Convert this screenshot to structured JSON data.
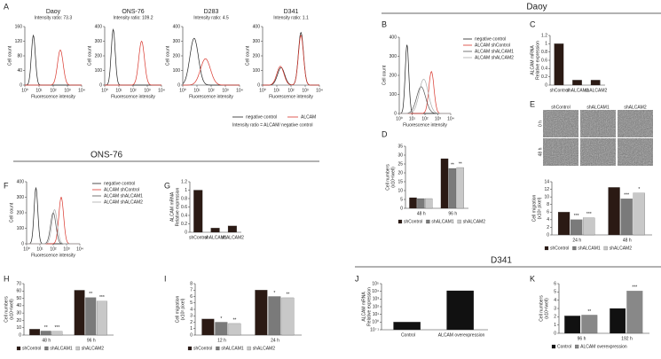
{
  "headers": [
    "Daoy",
    "ONS-76",
    "D341"
  ],
  "panel_labels": [
    "A",
    "B",
    "C",
    "D",
    "E",
    "F",
    "G",
    "H",
    "I",
    "J",
    "K"
  ],
  "shared_legend": {
    "series": [
      {
        "name": "negative control",
        "color": "#222222"
      },
      {
        "name": "ALCAM",
        "color": "#d9362c"
      }
    ],
    "note": "Intensity ratio = ALCAM/ negative control"
  },
  "images": {
    "columns": [
      "shControl",
      "shALCAM1",
      "shALCAM2"
    ],
    "rows": [
      "0 h",
      "48 h"
    ]
  },
  "chart_data": [
    {
      "type": "flow",
      "title": "Daoy",
      "subtitle": "Intensity ratio: 73.3",
      "xlabel": "Fluorescence intensity",
      "ylabel": "Cell count",
      "log_x": true,
      "xlim": [
        1,
        10000
      ],
      "xticks": [
        {
          "value": 1,
          "label": "10⁰"
        },
        {
          "value": 10,
          "label": "10¹"
        },
        {
          "value": 100,
          "label": "10²"
        },
        {
          "value": 1000,
          "label": "10³"
        },
        {
          "value": 10000,
          "label": "10⁴"
        }
      ],
      "ylim": [
        0,
        160
      ],
      "yticks": [
        0,
        40,
        80,
        120,
        160
      ]
    },
    {
      "type": "flow",
      "title": "ONS-76",
      "subtitle": "Intensity ratio: 109.2",
      "xlabel": "Fluorescence intensity",
      "ylabel": "Cell count",
      "log_x": true,
      "xlim": [
        1,
        10000
      ],
      "xticks": [
        {
          "value": 1,
          "label": "10⁰"
        },
        {
          "value": 10,
          "label": "10¹"
        },
        {
          "value": 100,
          "label": "10²"
        },
        {
          "value": 1000,
          "label": "10³"
        },
        {
          "value": 10000,
          "label": "10⁴"
        }
      ],
      "ylim": [
        0,
        400
      ],
      "yticks": [
        0,
        100,
        200,
        300,
        400
      ]
    },
    {
      "type": "flow",
      "title": "D283",
      "subtitle": "Intensity ratio: 4.5",
      "xlabel": "Fluorescence intensity",
      "ylabel": "Cell count",
      "log_x": true,
      "xlim": [
        1,
        10000
      ],
      "xticks": [
        {
          "value": 1,
          "label": "10⁰"
        },
        {
          "value": 10,
          "label": "10¹"
        },
        {
          "value": 100,
          "label": "10²"
        },
        {
          "value": 1000,
          "label": "10³"
        },
        {
          "value": 10000,
          "label": "10⁴"
        }
      ],
      "ylim": [
        0,
        400
      ],
      "yticks": [
        0,
        100,
        200,
        300,
        400
      ]
    },
    {
      "type": "flow",
      "title": "D341",
      "subtitle": "Intensity ratio: 1.1",
      "xlabel": "Fluorescence intensity",
      "ylabel": "Cell count",
      "log_x": true,
      "xlim": [
        1,
        10000
      ],
      "xticks": [
        {
          "value": 1,
          "label": "10⁰"
        },
        {
          "value": 10,
          "label": "10¹"
        },
        {
          "value": 100,
          "label": "10²"
        },
        {
          "value": 1000,
          "label": "10³"
        },
        {
          "value": 10000,
          "label": "10⁴"
        }
      ],
      "ylim": [
        0,
        400
      ],
      "yticks": [
        0,
        100,
        200,
        300,
        400
      ]
    },
    {
      "type": "flow",
      "xlabel": "Fluorescence intensity",
      "ylabel": "Cell count",
      "log_x": true,
      "xlim": [
        1,
        10000
      ],
      "xticks": [
        {
          "value": 1,
          "label": "10⁰"
        },
        {
          "value": 10,
          "label": "10¹"
        },
        {
          "value": 100,
          "label": "10²"
        },
        {
          "value": 1000,
          "label": "10³"
        },
        {
          "value": 10000,
          "label": "10⁴"
        }
      ],
      "ylim": [
        0,
        400
      ],
      "yticks": [
        0,
        100,
        200,
        300,
        400
      ],
      "series": [
        {
          "name": "negative control",
          "color": "#222222"
        },
        {
          "name": "ALCAM shControl",
          "color": "#d9362c"
        },
        {
          "name": "ALCAM shALCAM1",
          "color": "#555555"
        },
        {
          "name": "ALCAM shALCAM2",
          "color": "#aaaaaa"
        }
      ]
    },
    {
      "type": "bar",
      "ylabel": [
        "ALCAM mRNA",
        "Relative expression"
      ],
      "categories": [
        "shControl",
        "shALCAM1",
        "shALCAM2"
      ],
      "values": [
        1,
        0.12,
        0.12
      ],
      "color": "#2b1a14",
      "ylim": [
        0,
        1.2
      ],
      "yticks": [
        0,
        0.2,
        0.4,
        0.6,
        0.8,
        1,
        1.2
      ]
    },
    {
      "type": "bar",
      "ylabel": [
        "Cell numbers",
        "(x10⁴/well)"
      ],
      "categories": [
        "48 h",
        "96 h"
      ],
      "ylim": [
        0,
        35
      ],
      "yticks": [
        0,
        5,
        10,
        15,
        20,
        25,
        30,
        35
      ],
      "series": [
        {
          "name": "shControl",
          "color": "#2b1a14",
          "values": [
            6,
            28
          ],
          "significance": [
            null,
            null
          ]
        },
        {
          "name": "shALCAM1",
          "color": "#7a7a7a",
          "values": [
            5.5,
            22.5
          ],
          "significance": [
            null,
            "**"
          ]
        },
        {
          "name": "shALCAM2",
          "color": "#c8c8c8",
          "values": [
            5.5,
            23
          ],
          "significance": [
            null,
            "**"
          ]
        }
      ]
    },
    {
      "type": "bar",
      "ylabel": [
        "Cell migration",
        "(x10² pixel)"
      ],
      "categories": [
        "24 h",
        "48 h"
      ],
      "ylim": [
        0,
        14
      ],
      "yticks": [
        0,
        2,
        4,
        6,
        8,
        10,
        12,
        14
      ],
      "series": [
        {
          "name": "shControl",
          "color": "#2b1a14",
          "values": [
            6,
            12.5
          ],
          "significance": [
            null,
            null
          ]
        },
        {
          "name": "shALCAM1",
          "color": "#7a7a7a",
          "values": [
            4,
            9.5
          ],
          "significance": [
            "***",
            "***"
          ]
        },
        {
          "name": "shALCAM2",
          "color": "#c8c8c8",
          "values": [
            4.5,
            11
          ],
          "significance": [
            "***",
            "*"
          ]
        }
      ]
    },
    {
      "type": "flow",
      "xlabel": "Fluorescence intensity",
      "ylabel": "Cell count",
      "log_x": true,
      "xlim": [
        1,
        10000
      ],
      "xticks": [
        {
          "value": 1,
          "label": "10⁰"
        },
        {
          "value": 10,
          "label": "10¹"
        },
        {
          "value": 100,
          "label": "10²"
        },
        {
          "value": 1000,
          "label": "10³"
        },
        {
          "value": 10000,
          "label": "10⁴"
        }
      ],
      "ylim": [
        0,
        400
      ],
      "yticks": [
        0,
        100,
        200,
        300,
        400
      ],
      "series": [
        {
          "name": "negative control",
          "color": "#222222"
        },
        {
          "name": "ALCAM shControl",
          "color": "#d9362c"
        },
        {
          "name": "ALCAM shALCAM1",
          "color": "#555555"
        },
        {
          "name": "ALCAM shALCAM2",
          "color": "#aaaaaa"
        }
      ]
    },
    {
      "type": "bar",
      "ylabel": [
        "ALCAM mRNA",
        "Relative expression"
      ],
      "categories": [
        "shControl",
        "shALCAM1",
        "shALCAM2"
      ],
      "values": [
        1,
        0.1,
        0.15
      ],
      "color": "#2b1a14",
      "ylim": [
        0,
        1.2
      ],
      "yticks": [
        0,
        0.2,
        0.4,
        0.6,
        0.8,
        1,
        1.2
      ]
    },
    {
      "type": "bar",
      "ylabel": [
        "Cell numbers",
        "(x10⁴/well)"
      ],
      "categories": [
        "48 h",
        "96 h"
      ],
      "ylim": [
        0,
        70
      ],
      "yticks": [
        0,
        10,
        20,
        30,
        40,
        50,
        60,
        70
      ],
      "series": [
        {
          "name": "shControl",
          "color": "#2b1a14",
          "values": [
            8,
            61
          ],
          "significance": [
            null,
            null
          ]
        },
        {
          "name": "shALCAM1",
          "color": "#7a7a7a",
          "values": [
            5.5,
            51
          ],
          "significance": [
            "**",
            "**"
          ]
        },
        {
          "name": "shALCAM2",
          "color": "#c8c8c8",
          "values": [
            5,
            46
          ],
          "significance": [
            "***",
            "***"
          ]
        }
      ]
    },
    {
      "type": "bar",
      "ylabel": [
        "Cell migration",
        "(x10² pixel)"
      ],
      "categories": [
        "12 h",
        "24 h"
      ],
      "ylim": [
        0,
        8
      ],
      "yticks": [
        0,
        1,
        2,
        3,
        4,
        5,
        6,
        7,
        8
      ],
      "series": [
        {
          "name": "shControl",
          "color": "#2b1a14",
          "values": [
            2.5,
            7
          ],
          "significance": [
            null,
            null
          ]
        },
        {
          "name": "shALCAM1",
          "color": "#7a7a7a",
          "values": [
            2,
            6
          ],
          "significance": [
            "*",
            "*"
          ]
        },
        {
          "name": "shALCAM2",
          "color": "#c8c8c8",
          "values": [
            1.8,
            5.8
          ],
          "significance": [
            "**",
            "**"
          ]
        }
      ]
    },
    {
      "type": "bar",
      "ylabel": [
        "ALCAM mRNA",
        "Relative expression"
      ],
      "categories": [
        "Control",
        "ALCAM overexpression"
      ],
      "values": [
        1,
        12000
      ],
      "color": "#111111",
      "log_y": true,
      "ylim": [
        0.1,
        100000
      ],
      "yticks": [
        {
          "value": 0.1,
          "label": "10⁻¹"
        },
        {
          "value": 1,
          "label": "10⁰"
        },
        {
          "value": 10,
          "label": "10¹"
        },
        {
          "value": 100,
          "label": "10²"
        },
        {
          "value": 1000,
          "label": "10³"
        },
        {
          "value": 10000,
          "label": "10⁴"
        },
        {
          "value": 100000,
          "label": "10⁵"
        }
      ]
    },
    {
      "type": "bar",
      "ylabel": [
        "Cell numbers",
        "(x10⁴/well)"
      ],
      "categories": [
        "96 h",
        "192 h"
      ],
      "ylim": [
        0,
        6
      ],
      "yticks": [
        0,
        1,
        2,
        3,
        4,
        5,
        6
      ],
      "series": [
        {
          "name": "Control",
          "color": "#111111",
          "values": [
            2.1,
            3
          ],
          "significance": [
            null,
            null
          ]
        },
        {
          "name": "ALCAM overexpression",
          "color": "#888888",
          "values": [
            2.2,
            5.1
          ],
          "significance": [
            "**",
            "***"
          ]
        }
      ]
    }
  ]
}
